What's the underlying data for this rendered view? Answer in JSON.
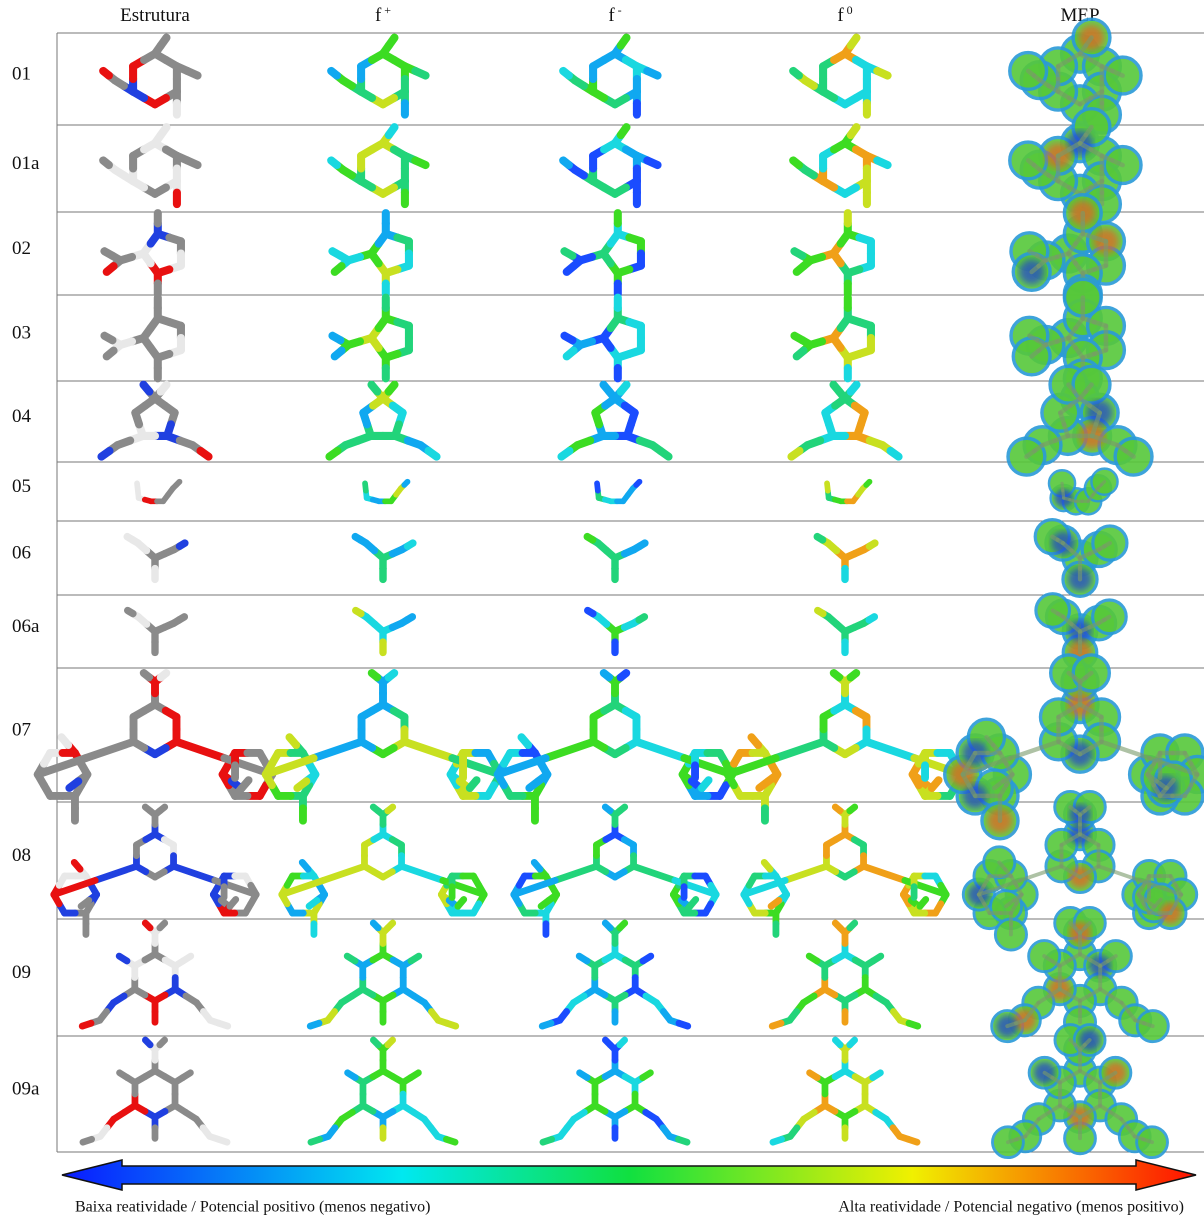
{
  "header": {
    "columns": [
      {
        "text": "Estrutura"
      },
      {
        "text": "f",
        "sup": "+"
      },
      {
        "text": "f",
        "sup": "-"
      },
      {
        "text": "f",
        "sup": "0"
      },
      {
        "text": "MEP"
      }
    ]
  },
  "rows": [
    {
      "label": "01"
    },
    {
      "label": "01a"
    },
    {
      "label": "02"
    },
    {
      "label": "03"
    },
    {
      "label": "04"
    },
    {
      "label": "05"
    },
    {
      "label": "06"
    },
    {
      "label": "06a"
    },
    {
      "label": "07"
    },
    {
      "label": "08"
    },
    {
      "label": "09"
    },
    {
      "label": "09a"
    }
  ],
  "legend": {
    "low": "Baixa reatividade / Potencial positivo (menos negativo)",
    "high": "Alta reatividade / Potencial negativo (menos positivo)"
  }
}
